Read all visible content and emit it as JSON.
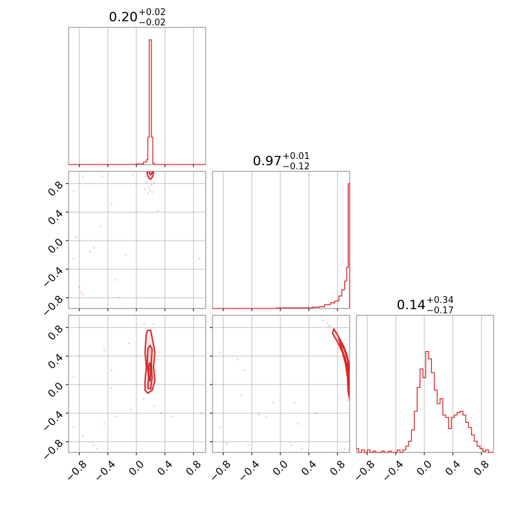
{
  "colors": {
    "series": "#d62728",
    "grid": "#c0c0c0",
    "frame": "#808080"
  },
  "chart_data": {
    "type": "corner",
    "parameters": 3,
    "ticks": [
      -0.8,
      -0.4,
      0.0,
      0.4,
      0.8
    ],
    "tick_labels": [
      "−0.8",
      "−0.4",
      "0.0",
      "0.4",
      "0.8"
    ],
    "range": [
      -0.95,
      0.97
    ],
    "grid": true,
    "titles": [
      {
        "median": "0.20",
        "plus": "+0.02",
        "minus": "−0.02"
      },
      {
        "median": "0.97",
        "plus": "+0.01",
        "minus": "−0.12"
      },
      {
        "median": "0.14",
        "plus": "+0.34",
        "minus": "−0.17"
      }
    ],
    "histograms": [
      {
        "param": 0,
        "bins": [
          [
            -0.95,
            0
          ],
          [
            0.0,
            0.005
          ],
          [
            0.1,
            0.02
          ],
          [
            0.145,
            0.04
          ],
          [
            0.16,
            0.22
          ],
          [
            0.18,
            1.0
          ],
          [
            0.21,
            0.22
          ],
          [
            0.23,
            0.01
          ],
          [
            0.25,
            0
          ]
        ]
      },
      {
        "param": 1,
        "bins": [
          [
            -0.95,
            0
          ],
          [
            -0.05,
            0.005
          ],
          [
            0.3,
            0.005
          ],
          [
            0.45,
            0.01
          ],
          [
            0.55,
            0.015
          ],
          [
            0.62,
            0.03
          ],
          [
            0.7,
            0.045
          ],
          [
            0.76,
            0.06
          ],
          [
            0.82,
            0.1
          ],
          [
            0.86,
            0.15
          ],
          [
            0.9,
            0.22
          ],
          [
            0.93,
            0.33
          ],
          [
            0.95,
            1.0
          ],
          [
            0.97,
            0
          ]
        ]
      },
      {
        "param": 2,
        "bins": [
          [
            -0.95,
            0.03
          ],
          [
            -0.92,
            0.0
          ],
          [
            -0.88,
            0.02
          ],
          [
            -0.84,
            0.0
          ],
          [
            -0.8,
            0.02
          ],
          [
            -0.76,
            0.0
          ],
          [
            -0.72,
            0.01
          ],
          [
            -0.68,
            0.0
          ],
          [
            -0.6,
            0.01
          ],
          [
            -0.56,
            0.0
          ],
          [
            -0.5,
            0.01
          ],
          [
            -0.46,
            0.0
          ],
          [
            -0.38,
            0.02
          ],
          [
            -0.34,
            0.0
          ],
          [
            -0.3,
            0.02
          ],
          [
            -0.26,
            0.05
          ],
          [
            -0.22,
            0.09
          ],
          [
            -0.18,
            0.18
          ],
          [
            -0.14,
            0.33
          ],
          [
            -0.1,
            0.52
          ],
          [
            -0.06,
            0.67
          ],
          [
            -0.02,
            0.6
          ],
          [
            0.02,
            0.81
          ],
          [
            0.06,
            0.75
          ],
          [
            0.1,
            0.64
          ],
          [
            0.14,
            0.5
          ],
          [
            0.18,
            0.39
          ],
          [
            0.22,
            0.43
          ],
          [
            0.26,
            0.3
          ],
          [
            0.3,
            0.28
          ],
          [
            0.34,
            0.19
          ],
          [
            0.38,
            0.28
          ],
          [
            0.42,
            0.3
          ],
          [
            0.46,
            0.32
          ],
          [
            0.5,
            0.33
          ],
          [
            0.54,
            0.3
          ],
          [
            0.58,
            0.24
          ],
          [
            0.62,
            0.2
          ],
          [
            0.66,
            0.14
          ],
          [
            0.7,
            0.09
          ],
          [
            0.74,
            0.05
          ],
          [
            0.78,
            0.03
          ],
          [
            0.82,
            0.01
          ],
          [
            0.86,
            0.02
          ],
          [
            0.9,
            0.0
          ],
          [
            0.97,
            0.0
          ]
        ]
      }
    ],
    "contours": [
      {
        "px": 0,
        "py": 1,
        "levels": [
          [
            [
              0.16,
              1.0
            ],
            [
              0.15,
              0.94
            ],
            [
              0.17,
              0.88
            ],
            [
              0.2,
              0.86
            ],
            [
              0.23,
              0.9
            ],
            [
              0.24,
              0.96
            ],
            [
              0.23,
              1.0
            ]
          ],
          [
            [
              0.18,
              1.0
            ],
            [
              0.18,
              0.95
            ],
            [
              0.2,
              0.92
            ],
            [
              0.22,
              0.95
            ],
            [
              0.22,
              1.0
            ]
          ]
        ]
      },
      {
        "px": 0,
        "py": 2,
        "levels": [
          [
            [
              0.14,
              0.72
            ],
            [
              0.12,
              0.45
            ],
            [
              0.14,
              0.25
            ],
            [
              0.12,
              0.05
            ],
            [
              0.12,
              -0.08
            ],
            [
              0.16,
              -0.12
            ],
            [
              0.22,
              -0.08
            ],
            [
              0.26,
              0.05
            ],
            [
              0.24,
              0.25
            ],
            [
              0.26,
              0.45
            ],
            [
              0.22,
              0.66
            ],
            [
              0.2,
              0.76
            ],
            [
              0.16,
              0.76
            ]
          ],
          [
            [
              0.16,
              0.5
            ],
            [
              0.15,
              0.3
            ],
            [
              0.17,
              0.1
            ],
            [
              0.16,
              -0.05
            ],
            [
              0.2,
              -0.06
            ],
            [
              0.22,
              0.1
            ],
            [
              0.21,
              0.3
            ],
            [
              0.22,
              0.5
            ],
            [
              0.19,
              0.55
            ]
          ],
          [
            [
              0.18,
              0.3
            ],
            [
              0.17,
              0.15
            ],
            [
              0.19,
              0.05
            ],
            [
              0.2,
              0.15
            ],
            [
              0.2,
              0.3
            ]
          ]
        ]
      },
      {
        "px": 1,
        "py": 2,
        "levels": [
          [
            [
              0.75,
              0.78
            ],
            [
              0.82,
              0.66
            ],
            [
              0.89,
              0.53
            ],
            [
              0.93,
              0.42
            ],
            [
              0.96,
              0.3
            ],
            [
              0.97,
              0.3
            ],
            [
              0.97,
              -0.2
            ],
            [
              0.95,
              -0.1
            ],
            [
              0.94,
              0.1
            ],
            [
              0.91,
              0.3
            ],
            [
              0.87,
              0.45
            ],
            [
              0.81,
              0.58
            ],
            [
              0.73,
              0.72
            ]
          ],
          [
            [
              0.82,
              0.64
            ],
            [
              0.9,
              0.48
            ],
            [
              0.94,
              0.35
            ],
            [
              0.96,
              0.22
            ],
            [
              0.97,
              0.1
            ],
            [
              0.96,
              0.0
            ],
            [
              0.94,
              0.2
            ],
            [
              0.91,
              0.36
            ],
            [
              0.86,
              0.5
            ]
          ],
          [
            [
              0.93,
              0.3
            ],
            [
              0.96,
              0.15
            ],
            [
              0.97,
              0.05
            ],
            [
              0.96,
              -0.05
            ],
            [
              0.95,
              0.15
            ]
          ]
        ]
      }
    ],
    "scatter": [
      {
        "px": 0,
        "py": 1,
        "points": [
          [
            -0.05,
            0.92
          ],
          [
            0.13,
            0.9
          ],
          [
            0.14,
            0.82
          ],
          [
            0.12,
            0.72
          ],
          [
            0.22,
            0.68
          ],
          [
            0.25,
            0.82
          ],
          [
            0.17,
            0.75
          ],
          [
            0.19,
            0.7
          ],
          [
            0.21,
            0.78
          ],
          [
            0.16,
            0.66
          ],
          [
            -0.48,
            0.9
          ],
          [
            -0.75,
            0.9
          ],
          [
            -0.88,
            0.7
          ],
          [
            -0.35,
            0.52
          ],
          [
            -0.5,
            0.2
          ],
          [
            -0.85,
            0.05
          ],
          [
            -0.6,
            -0.1
          ],
          [
            -0.65,
            -0.15
          ],
          [
            -0.88,
            -0.25
          ],
          [
            -0.15,
            -0.2
          ],
          [
            -0.3,
            -0.55
          ],
          [
            -0.8,
            -0.65
          ],
          [
            -0.78,
            -0.72
          ],
          [
            -0.75,
            -0.75
          ],
          [
            -0.25,
            -0.8
          ],
          [
            0.88,
            -0.25
          ],
          [
            0.3,
            0.42
          ]
        ]
      },
      {
        "px": 0,
        "py": 2,
        "points": [
          [
            0.11,
            0.85
          ],
          [
            0.24,
            0.85
          ],
          [
            0.13,
            0.6
          ],
          [
            0.27,
            0.2
          ],
          [
            0.1,
            -0.2
          ],
          [
            0.25,
            -0.3
          ],
          [
            -0.1,
            0.58
          ],
          [
            -0.45,
            0.48
          ],
          [
            -0.35,
            0.2
          ],
          [
            -0.88,
            0.1
          ],
          [
            -0.35,
            -0.05
          ],
          [
            -0.08,
            -0.35
          ],
          [
            -0.28,
            -0.45
          ],
          [
            -0.45,
            -0.55
          ],
          [
            -0.88,
            -0.6
          ],
          [
            -0.75,
            -0.72
          ],
          [
            -0.6,
            -0.85
          ],
          [
            -0.55,
            -0.9
          ],
          [
            0.35,
            -0.4
          ],
          [
            0.5,
            -0.45
          ],
          [
            0.92,
            -0.4
          ],
          [
            0.3,
            0.35
          ]
        ]
      },
      {
        "px": 1,
        "py": 2,
        "points": [
          [
            0.6,
            0.9
          ],
          [
            0.65,
            0.86
          ],
          [
            0.7,
            0.83
          ],
          [
            0.68,
            0.82
          ],
          [
            0.9,
            0.35
          ],
          [
            0.88,
            0.4
          ],
          [
            0.93,
            0.18
          ],
          [
            0.95,
            -0.15
          ],
          [
            0.94,
            -0.22
          ],
          [
            -0.85,
            0.45
          ],
          [
            -0.6,
            0.35
          ],
          [
            -0.5,
            0.2
          ],
          [
            -0.8,
            0.0
          ],
          [
            -0.55,
            -0.15
          ],
          [
            -0.1,
            -0.25
          ],
          [
            0.2,
            -0.25
          ],
          [
            -0.3,
            -0.42
          ],
          [
            -0.2,
            -0.45
          ],
          [
            0.25,
            -0.55
          ],
          [
            0.5,
            -0.4
          ],
          [
            -0.85,
            -0.6
          ],
          [
            -0.75,
            -0.82
          ],
          [
            -0.45,
            -0.85
          ],
          [
            0.15,
            -0.85
          ],
          [
            0.3,
            -0.9
          ],
          [
            0.9,
            -0.9
          ]
        ]
      }
    ]
  }
}
